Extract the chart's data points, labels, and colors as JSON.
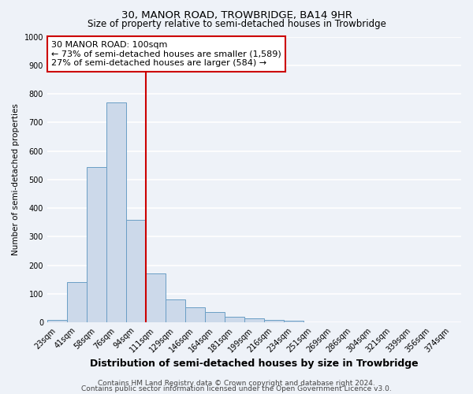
{
  "title": "30, MANOR ROAD, TROWBRIDGE, BA14 9HR",
  "subtitle": "Size of property relative to semi-detached houses in Trowbridge",
  "xlabel": "Distribution of semi-detached houses by size in Trowbridge",
  "ylabel": "Number of semi-detached properties",
  "bin_labels": [
    "23sqm",
    "41sqm",
    "58sqm",
    "76sqm",
    "94sqm",
    "111sqm",
    "129sqm",
    "146sqm",
    "164sqm",
    "181sqm",
    "199sqm",
    "216sqm",
    "234sqm",
    "251sqm",
    "269sqm",
    "286sqm",
    "304sqm",
    "321sqm",
    "339sqm",
    "356sqm",
    "374sqm"
  ],
  "bar_values": [
    10,
    140,
    545,
    770,
    360,
    172,
    80,
    53,
    37,
    20,
    13,
    8,
    5,
    0,
    0,
    0,
    0,
    0,
    0,
    0,
    0
  ],
  "num_bins": 21,
  "property_line_bin": 4,
  "bar_color": "#ccd9ea",
  "bar_edge_color": "#6a9ec5",
  "property_line_color": "#cc0000",
  "annotation_line1": "30 MANOR ROAD: 100sqm",
  "annotation_line2": "← 73% of semi-detached houses are smaller (1,589)",
  "annotation_line3": "27% of semi-detached houses are larger (584) →",
  "annotation_box_color": "#ffffff",
  "annotation_box_edge_color": "#cc0000",
  "ylim": [
    0,
    1000
  ],
  "yticks": [
    0,
    100,
    200,
    300,
    400,
    500,
    600,
    700,
    800,
    900,
    1000
  ],
  "footer1": "Contains HM Land Registry data © Crown copyright and database right 2024.",
  "footer2": "Contains public sector information licensed under the Open Government Licence v3.0.",
  "background_color": "#eef2f8",
  "plot_background_color": "#eef2f8",
  "grid_color": "#ffffff",
  "title_fontsize": 9.5,
  "subtitle_fontsize": 8.5,
  "xlabel_fontsize": 9,
  "ylabel_fontsize": 7.5,
  "tick_fontsize": 7,
  "annotation_fontsize": 8,
  "footer_fontsize": 6.5
}
